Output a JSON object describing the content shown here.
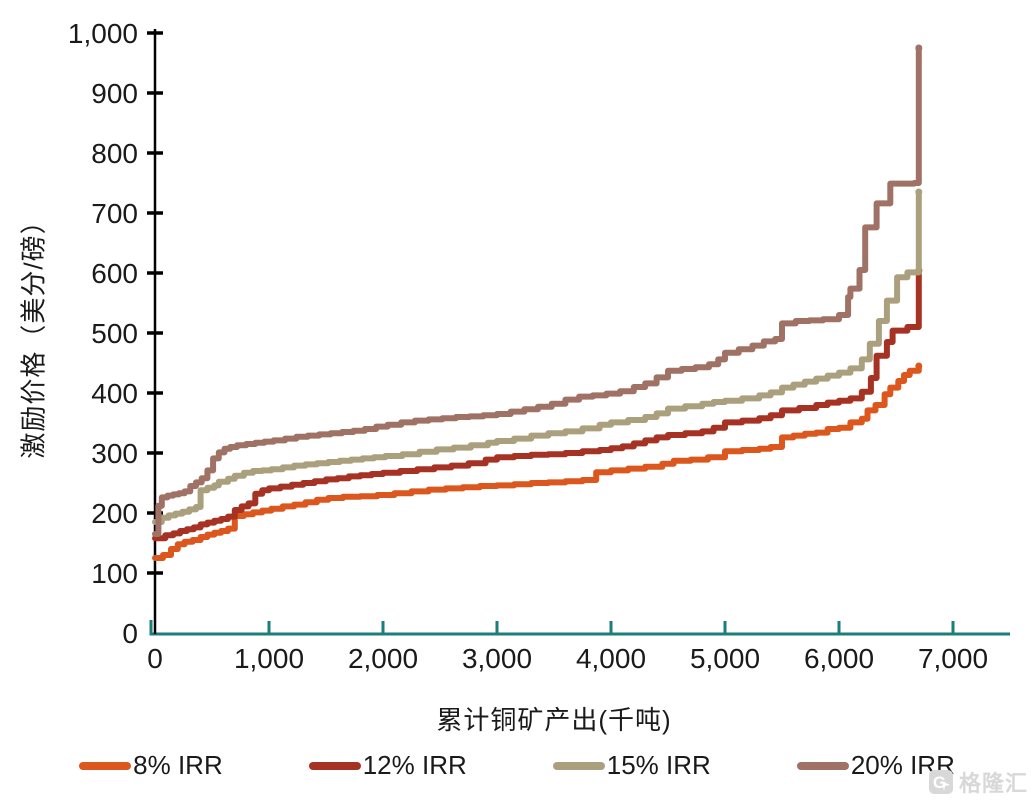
{
  "chart_data": {
    "type": "line",
    "step": true,
    "title": "",
    "xlabel": "累计铜矿产出(千吨)",
    "ylabel": "激励价格（美分/磅）",
    "xlim": [
      0,
      7500
    ],
    "ylim": [
      0,
      1000
    ],
    "x_ticks": [
      0,
      1000,
      2000,
      3000,
      4000,
      5000,
      6000,
      7000
    ],
    "y_ticks": [
      0,
      100,
      200,
      300,
      400,
      500,
      600,
      700,
      800,
      900,
      1000
    ],
    "grid": false,
    "legend_position": "bottom",
    "axis_color": "#1B7E7B",
    "y_axis_color": "#000000",
    "tick_label_color": "#1a1a1a",
    "line_width": 6,
    "series": [
      {
        "name": "8% IRR",
        "color": "#DB571E",
        "points": [
          [
            0,
            125
          ],
          [
            70,
            130
          ],
          [
            140,
            140
          ],
          [
            200,
            148
          ],
          [
            260,
            152
          ],
          [
            330,
            155
          ],
          [
            400,
            160
          ],
          [
            460,
            164
          ],
          [
            520,
            167
          ],
          [
            580,
            170
          ],
          [
            640,
            174
          ],
          [
            700,
            195
          ],
          [
            780,
            198
          ],
          [
            860,
            201
          ],
          [
            940,
            204
          ],
          [
            1020,
            207
          ],
          [
            1120,
            211
          ],
          [
            1220,
            214
          ],
          [
            1320,
            218
          ],
          [
            1420,
            222
          ],
          [
            1520,
            225
          ],
          [
            1650,
            227
          ],
          [
            1800,
            228
          ],
          [
            1950,
            230
          ],
          [
            2100,
            233
          ],
          [
            2250,
            236
          ],
          [
            2400,
            239
          ],
          [
            2550,
            241
          ],
          [
            2700,
            243
          ],
          [
            2850,
            245
          ],
          [
            3000,
            246
          ],
          [
            3150,
            248
          ],
          [
            3300,
            250
          ],
          [
            3450,
            251
          ],
          [
            3600,
            253
          ],
          [
            3750,
            255
          ],
          [
            3870,
            268
          ],
          [
            4000,
            271
          ],
          [
            4150,
            274
          ],
          [
            4300,
            277
          ],
          [
            4450,
            282
          ],
          [
            4550,
            287
          ],
          [
            4700,
            289
          ],
          [
            4850,
            293
          ],
          [
            5000,
            303
          ],
          [
            5150,
            305
          ],
          [
            5300,
            307
          ],
          [
            5400,
            310
          ],
          [
            5500,
            326
          ],
          [
            5600,
            329
          ],
          [
            5700,
            332
          ],
          [
            5800,
            334
          ],
          [
            5900,
            340
          ],
          [
            6000,
            342
          ],
          [
            6100,
            351
          ],
          [
            6200,
            357
          ],
          [
            6250,
            371
          ],
          [
            6320,
            380
          ],
          [
            6400,
            398
          ],
          [
            6450,
            409
          ],
          [
            6520,
            420
          ],
          [
            6570,
            430
          ],
          [
            6620,
            437
          ],
          [
            6700,
            445
          ]
        ]
      },
      {
        "name": "12% IRR",
        "color": "#A63224",
        "points": [
          [
            0,
            158
          ],
          [
            90,
            163
          ],
          [
            160,
            166
          ],
          [
            220,
            170
          ],
          [
            280,
            173
          ],
          [
            340,
            176
          ],
          [
            400,
            181
          ],
          [
            460,
            184
          ],
          [
            520,
            187
          ],
          [
            580,
            190
          ],
          [
            640,
            194
          ],
          [
            700,
            205
          ],
          [
            760,
            211
          ],
          [
            820,
            216
          ],
          [
            880,
            232
          ],
          [
            940,
            238
          ],
          [
            1000,
            241
          ],
          [
            1100,
            244
          ],
          [
            1200,
            247
          ],
          [
            1300,
            250
          ],
          [
            1400,
            253
          ],
          [
            1500,
            256
          ],
          [
            1600,
            258
          ],
          [
            1700,
            261
          ],
          [
            1800,
            263
          ],
          [
            1900,
            265
          ],
          [
            2000,
            267
          ],
          [
            2150,
            270
          ],
          [
            2300,
            273
          ],
          [
            2450,
            276
          ],
          [
            2600,
            279
          ],
          [
            2750,
            283
          ],
          [
            2900,
            289
          ],
          [
            3000,
            293
          ],
          [
            3150,
            295
          ],
          [
            3300,
            297
          ],
          [
            3450,
            298
          ],
          [
            3600,
            300
          ],
          [
            3750,
            303
          ],
          [
            3900,
            305
          ],
          [
            4000,
            308
          ],
          [
            4100,
            311
          ],
          [
            4200,
            316
          ],
          [
            4300,
            321
          ],
          [
            4400,
            326
          ],
          [
            4500,
            330
          ],
          [
            4650,
            333
          ],
          [
            4800,
            336
          ],
          [
            4900,
            342
          ],
          [
            5000,
            351
          ],
          [
            5150,
            354
          ],
          [
            5300,
            358
          ],
          [
            5400,
            363
          ],
          [
            5500,
            371
          ],
          [
            5650,
            375
          ],
          [
            5800,
            380
          ],
          [
            5900,
            384
          ],
          [
            6000,
            387
          ],
          [
            6100,
            391
          ],
          [
            6200,
            402
          ],
          [
            6280,
            425
          ],
          [
            6330,
            462
          ],
          [
            6420,
            485
          ],
          [
            6470,
            504
          ],
          [
            6600,
            510
          ],
          [
            6700,
            604
          ]
        ]
      },
      {
        "name": "15% IRR",
        "color": "#ABA07D",
        "points": [
          [
            0,
            185
          ],
          [
            60,
            192
          ],
          [
            120,
            196
          ],
          [
            180,
            199
          ],
          [
            240,
            202
          ],
          [
            300,
            206
          ],
          [
            360,
            210
          ],
          [
            400,
            238
          ],
          [
            460,
            242
          ],
          [
            520,
            246
          ],
          [
            560,
            252
          ],
          [
            640,
            257
          ],
          [
            700,
            262
          ],
          [
            780,
            267
          ],
          [
            860,
            270
          ],
          [
            940,
            271
          ],
          [
            1020,
            273
          ],
          [
            1120,
            276
          ],
          [
            1220,
            279
          ],
          [
            1320,
            281
          ],
          [
            1420,
            283
          ],
          [
            1520,
            285
          ],
          [
            1620,
            287
          ],
          [
            1720,
            289
          ],
          [
            1820,
            291
          ],
          [
            1920,
            293
          ],
          [
            2020,
            295
          ],
          [
            2170,
            298
          ],
          [
            2320,
            302
          ],
          [
            2470,
            306
          ],
          [
            2620,
            309
          ],
          [
            2770,
            313
          ],
          [
            2920,
            317
          ],
          [
            3000,
            320
          ],
          [
            3150,
            324
          ],
          [
            3300,
            329
          ],
          [
            3450,
            333
          ],
          [
            3600,
            336
          ],
          [
            3750,
            341
          ],
          [
            3900,
            347
          ],
          [
            4000,
            351
          ],
          [
            4150,
            355
          ],
          [
            4300,
            360
          ],
          [
            4400,
            366
          ],
          [
            4500,
            374
          ],
          [
            4650,
            378
          ],
          [
            4800,
            382
          ],
          [
            4900,
            385
          ],
          [
            5000,
            387
          ],
          [
            5150,
            391
          ],
          [
            5300,
            396
          ],
          [
            5400,
            401
          ],
          [
            5500,
            409
          ],
          [
            5600,
            414
          ],
          [
            5700,
            419
          ],
          [
            5800,
            424
          ],
          [
            5900,
            429
          ],
          [
            6000,
            434
          ],
          [
            6100,
            441
          ],
          [
            6200,
            456
          ],
          [
            6270,
            482
          ],
          [
            6350,
            520
          ],
          [
            6420,
            554
          ],
          [
            6510,
            593
          ],
          [
            6600,
            601
          ],
          [
            6700,
            735
          ]
        ]
      },
      {
        "name": "20% IRR",
        "color": "#9F7265",
        "points": [
          [
            0,
            165
          ],
          [
            30,
            212
          ],
          [
            60,
            226
          ],
          [
            110,
            229
          ],
          [
            160,
            231
          ],
          [
            210,
            233
          ],
          [
            260,
            236
          ],
          [
            310,
            245
          ],
          [
            360,
            251
          ],
          [
            410,
            258
          ],
          [
            460,
            271
          ],
          [
            510,
            291
          ],
          [
            560,
            301
          ],
          [
            610,
            307
          ],
          [
            660,
            310
          ],
          [
            720,
            313
          ],
          [
            800,
            315
          ],
          [
            880,
            317
          ],
          [
            960,
            319
          ],
          [
            1040,
            321
          ],
          [
            1140,
            324
          ],
          [
            1240,
            327
          ],
          [
            1340,
            329
          ],
          [
            1440,
            331
          ],
          [
            1540,
            333
          ],
          [
            1640,
            335
          ],
          [
            1740,
            337
          ],
          [
            1840,
            340
          ],
          [
            1940,
            344
          ],
          [
            2040,
            347
          ],
          [
            2160,
            351
          ],
          [
            2280,
            354
          ],
          [
            2400,
            356
          ],
          [
            2520,
            358
          ],
          [
            2640,
            360
          ],
          [
            2760,
            361
          ],
          [
            2880,
            363
          ],
          [
            3000,
            365
          ],
          [
            3120,
            369
          ],
          [
            3240,
            373
          ],
          [
            3360,
            377
          ],
          [
            3480,
            382
          ],
          [
            3600,
            389
          ],
          [
            3720,
            394
          ],
          [
            3840,
            396
          ],
          [
            3960,
            399
          ],
          [
            4080,
            403
          ],
          [
            4200,
            410
          ],
          [
            4300,
            416
          ],
          [
            4400,
            426
          ],
          [
            4500,
            437
          ],
          [
            4620,
            440
          ],
          [
            4740,
            443
          ],
          [
            4860,
            448
          ],
          [
            4940,
            456
          ],
          [
            5000,
            467
          ],
          [
            5120,
            473
          ],
          [
            5240,
            479
          ],
          [
            5340,
            486
          ],
          [
            5440,
            490
          ],
          [
            5500,
            516
          ],
          [
            5620,
            520
          ],
          [
            5740,
            521
          ],
          [
            5860,
            523
          ],
          [
            6000,
            530
          ],
          [
            6080,
            560
          ],
          [
            6100,
            574
          ],
          [
            6180,
            605
          ],
          [
            6230,
            676
          ],
          [
            6330,
            716
          ],
          [
            6450,
            749
          ],
          [
            6660,
            750
          ],
          [
            6700,
            975
          ]
        ]
      }
    ]
  },
  "watermark": {
    "text": "格隆汇"
  }
}
